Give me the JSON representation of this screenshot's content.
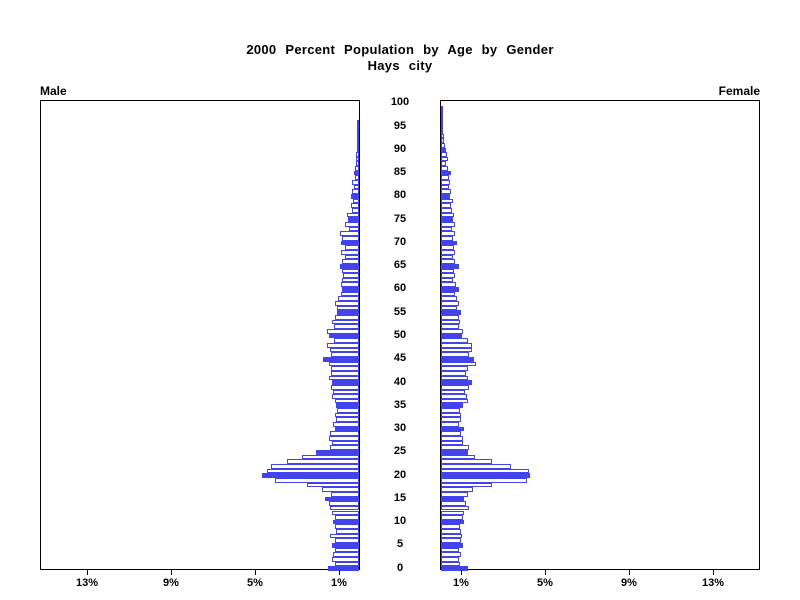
{
  "header": {
    "title": "2000 Percent Population by Age by Gender",
    "subtitle": "Hays city"
  },
  "panels": {
    "male_label": "Male",
    "female_label": "Female"
  },
  "axes": {
    "age_ticks": [
      "0",
      "5",
      "10",
      "15",
      "20",
      "25",
      "30",
      "35",
      "40",
      "45",
      "50",
      "55",
      "60",
      "65",
      "70",
      "75",
      "80",
      "85",
      "90",
      "95",
      "100"
    ],
    "male_pct_ticks": [
      {
        "value": 13,
        "label": "13%"
      },
      {
        "value": 9,
        "label": "9%"
      },
      {
        "value": 5,
        "label": "5%"
      },
      {
        "value": 1,
        "label": "1%"
      }
    ],
    "female_pct_ticks": [
      {
        "value": 1,
        "label": "1%"
      },
      {
        "value": 5,
        "label": "5%"
      },
      {
        "value": 9,
        "label": "9%"
      },
      {
        "value": 13,
        "label": "13%"
      }
    ]
  },
  "colors": {
    "bar_blue": "#4343ee",
    "axis_black": "#000000",
    "background": "#ffffff"
  },
  "chart_data": {
    "type": "bar",
    "subtype": "population_pyramid",
    "title": "2000 Percent Population by Age by Gender",
    "subtitle": "Hays city",
    "unit": "percent_of_population",
    "age_min": 0,
    "age_max": 100,
    "xlim_percent": [
      0,
      15.2
    ],
    "x_axis_ticks_percent": [
      1,
      5,
      9,
      13
    ],
    "highlight_rule": "bars for ages divisible by 5 are solid blue; all other ages are white with blue outline",
    "legend_position": "none",
    "grid": false,
    "series": [
      {
        "name": "Male",
        "side": "left",
        "values": [
          1.46,
          1.16,
          1.27,
          1.22,
          1.16,
          1.27,
          1.16,
          1.38,
          1.11,
          1.16,
          1.22,
          1.16,
          1.27,
          1.38,
          1.43,
          1.6,
          1.35,
          1.75,
          2.5,
          4.02,
          4.6,
          4.4,
          4.2,
          3.44,
          2.73,
          2.06,
          1.38,
          1.3,
          1.43,
          1.38,
          1.16,
          1.22,
          1.11,
          1.16,
          1.03,
          1.11,
          1.16,
          1.27,
          1.22,
          1.35,
          1.3,
          1.43,
          1.35,
          1.35,
          1.43,
          1.7,
          1.35,
          1.4,
          1.51,
          1.19,
          1.43,
          1.51,
          1.19,
          1.27,
          1.14,
          1.03,
          1.03,
          1.14,
          0.98,
          0.87,
          0.82,
          0.87,
          0.79,
          0.76,
          0.79,
          0.92,
          0.79,
          0.68,
          0.87,
          0.68,
          0.87,
          0.79,
          0.92,
          0.48,
          0.68,
          0.51,
          0.56,
          0.32,
          0.37,
          0.27,
          0.4,
          0.35,
          0.25,
          0.32,
          0.19,
          0.22,
          0.19,
          0.13,
          0.16,
          0.13,
          0.1,
          0.08,
          0.06,
          0.08,
          0.05,
          0.03,
          0.02,
          0,
          0,
          0,
          0
        ]
      },
      {
        "name": "Female",
        "side": "right",
        "values": [
          1.27,
          0.9,
          0.87,
          0.95,
          0.87,
          1.06,
          0.95,
          1.0,
          0.95,
          0.9,
          1.11,
          1.03,
          1.11,
          1.32,
          1.19,
          1.11,
          1.27,
          1.51,
          2.43,
          4.08,
          4.25,
          4.18,
          3.33,
          2.43,
          1.62,
          1.27,
          1.33,
          1.03,
          1.03,
          0.95,
          1.11,
          0.87,
          0.95,
          0.95,
          0.9,
          1.03,
          1.27,
          1.22,
          1.14,
          1.35,
          1.48,
          1.27,
          1.19,
          1.3,
          1.67,
          1.56,
          1.35,
          1.48,
          1.48,
          1.27,
          1.0,
          1.06,
          0.87,
          0.9,
          0.84,
          0.95,
          0.75,
          0.84,
          0.75,
          0.68,
          0.84,
          0.71,
          0.59,
          0.68,
          0.63,
          0.84,
          0.68,
          0.59,
          0.68,
          0.63,
          0.75,
          0.59,
          0.68,
          0.52,
          0.68,
          0.59,
          0.63,
          0.52,
          0.48,
          0.56,
          0.45,
          0.48,
          0.4,
          0.44,
          0.4,
          0.48,
          0.35,
          0.24,
          0.32,
          0.29,
          0.24,
          0.19,
          0.15,
          0.12,
          0.1,
          0.08,
          0.05,
          0.05,
          0.02,
          0.02,
          0
        ]
      }
    ]
  }
}
